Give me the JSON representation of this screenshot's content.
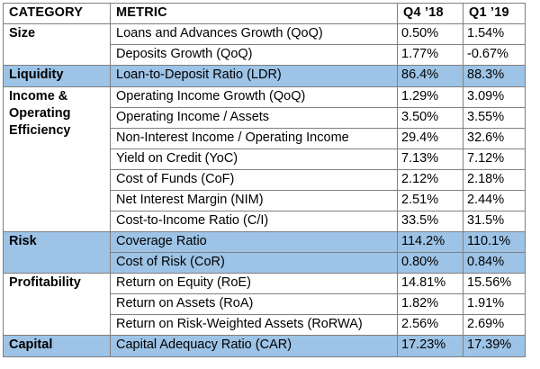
{
  "headers": {
    "category": "CATEGORY",
    "metric": "METRIC",
    "q4": "Q4 ’18",
    "q1": "Q1 ’19"
  },
  "colors": {
    "highlight": "#9dc3e6",
    "border": "#7f7f7f",
    "background": "#ffffff"
  },
  "groups": [
    {
      "category": "Size",
      "shaded": false,
      "rows": [
        {
          "metric": "Loans and Advances Growth (QoQ)",
          "q4": "0.50%",
          "q1": "1.54%"
        },
        {
          "metric": "Deposits Growth (QoQ)",
          "q4": "1.77%",
          "q1": "-0.67%"
        }
      ]
    },
    {
      "category": "Liquidity",
      "shaded": true,
      "rows": [
        {
          "metric": "Loan-to-Deposit Ratio (LDR)",
          "q4": "86.4%",
          "q1": "88.3%"
        }
      ]
    },
    {
      "category": "Income & Operating Efficiency",
      "shaded": false,
      "rows": [
        {
          "metric": "Operating Income Growth (QoQ)",
          "q4": "1.29%",
          "q1": "3.09%"
        },
        {
          "metric": "Operating Income / Assets",
          "q4": "3.50%",
          "q1": "3.55%"
        },
        {
          "metric": "Non-Interest Income / Operating Income",
          "q4": "29.4%",
          "q1": "32.6%"
        },
        {
          "metric": "Yield on Credit (YoC)",
          "q4": "7.13%",
          "q1": "7.12%"
        },
        {
          "metric": "Cost of Funds (CoF)",
          "q4": "2.12%",
          "q1": "2.18%"
        },
        {
          "metric": "Net Interest Margin (NIM)",
          "q4": "2.51%",
          "q1": "2.44%"
        },
        {
          "metric": "Cost-to-Income Ratio (C/I)",
          "q4": "33.5%",
          "q1": "31.5%"
        }
      ]
    },
    {
      "category": "Risk",
      "shaded": true,
      "rows": [
        {
          "metric": "Coverage Ratio",
          "q4": "114.2%",
          "q1": "110.1%"
        },
        {
          "metric": "Cost of Risk (CoR)",
          "q4": "0.80%",
          "q1": "0.84%"
        }
      ]
    },
    {
      "category": "Profitability",
      "shaded": false,
      "rows": [
        {
          "metric": "Return on Equity (RoE)",
          "q4": "14.81%",
          "q1": "15.56%"
        },
        {
          "metric": "Return on Assets (RoA)",
          "q4": "1.82%",
          "q1": "1.91%"
        },
        {
          "metric": "Return on Risk-Weighted Assets (RoRWA)",
          "q4": "2.56%",
          "q1": "2.69%"
        }
      ]
    },
    {
      "category": "Capital",
      "shaded": true,
      "rows": [
        {
          "metric": "Capital Adequacy Ratio (CAR)",
          "q4": "17.23%",
          "q1": "17.39%"
        }
      ]
    }
  ]
}
